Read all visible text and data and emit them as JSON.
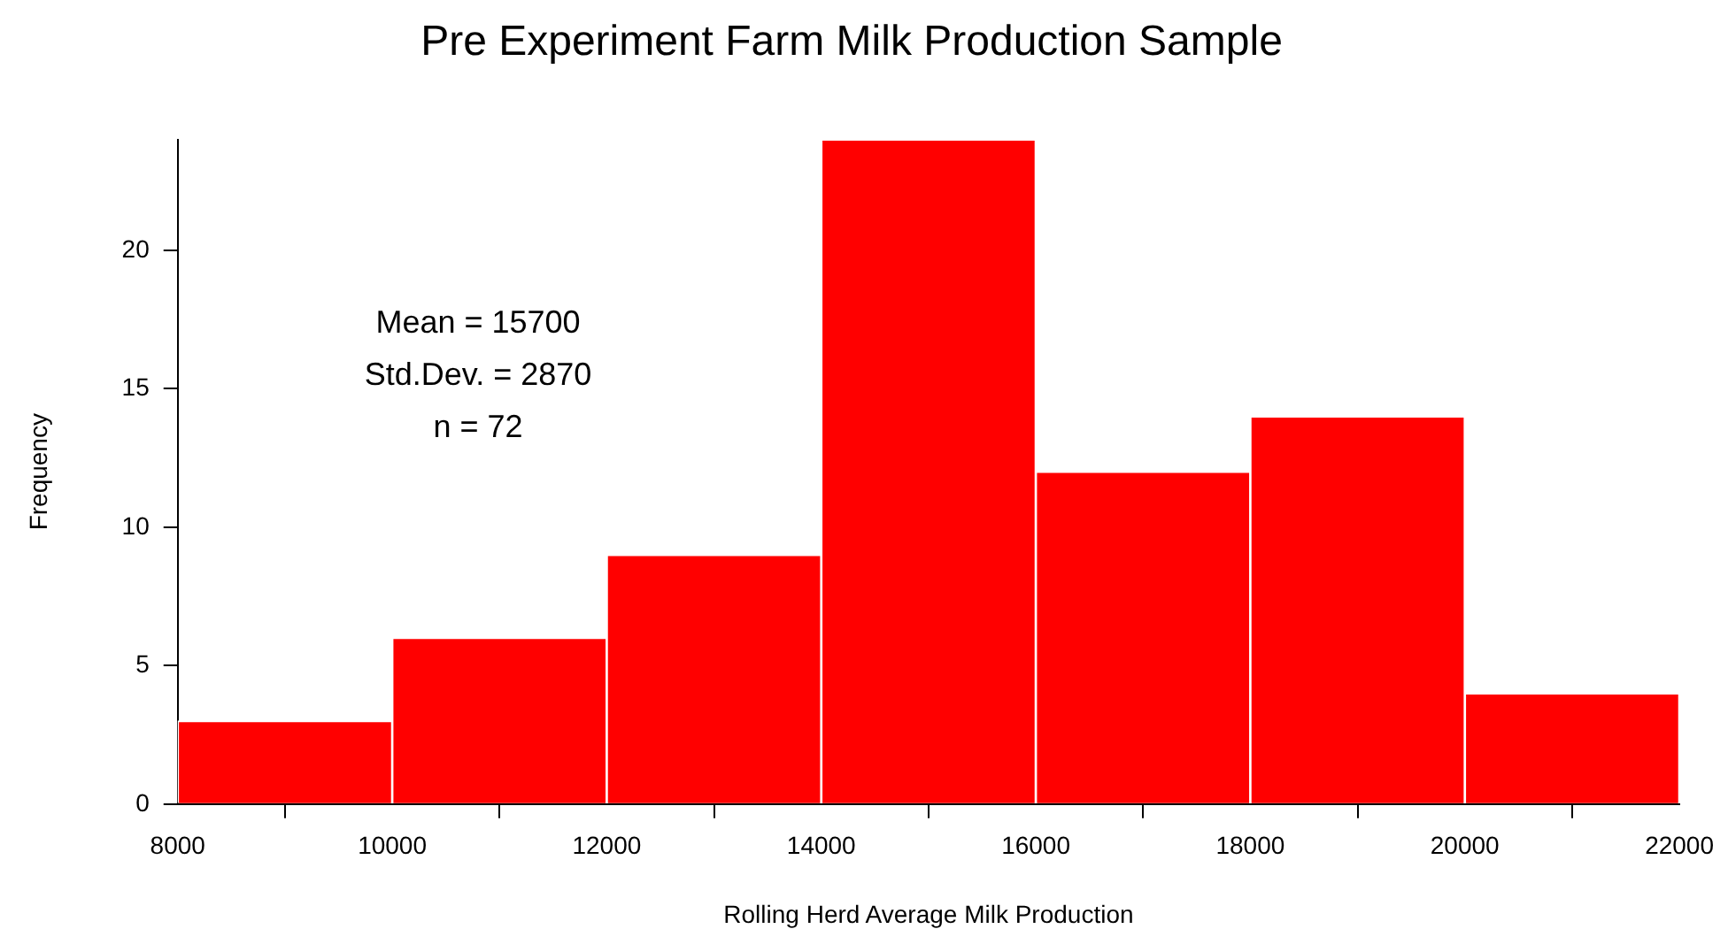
{
  "chart_data": {
    "type": "histogram",
    "title": "Pre Experiment Farm Milk Production Sample",
    "xlabel": "Rolling Herd Average Milk Production",
    "ylabel": "Frequency",
    "bins": [
      8000,
      10000,
      12000,
      14000,
      16000,
      18000,
      20000,
      22000
    ],
    "values": [
      3,
      6,
      9,
      24,
      12,
      14,
      4
    ],
    "color": "#ff0000",
    "xlim": [
      8000,
      22000
    ],
    "xticks": [
      8000,
      10000,
      12000,
      14000,
      16000,
      18000,
      20000,
      22000
    ],
    "ylim": [
      0,
      24
    ],
    "yticks": [
      0,
      5,
      10,
      15,
      20
    ],
    "annotations": [
      "Mean = 15700",
      "Std.Dev. = 2870",
      "n = 72"
    ]
  }
}
